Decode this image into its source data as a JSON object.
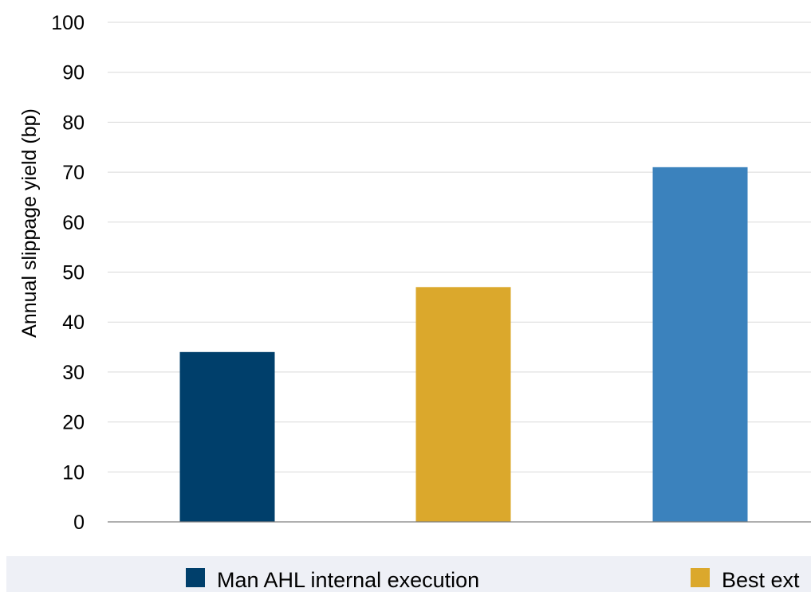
{
  "chart_data": {
    "type": "bar",
    "categories": [
      "",
      "",
      ""
    ],
    "values": [
      34,
      47,
      71
    ],
    "bar_colors": [
      "#003f6b",
      "#dba82c",
      "#3b82bd"
    ],
    "ylabel": "Annual slippage yield (bp)",
    "xlabel": "",
    "ylim": [
      0,
      100
    ],
    "yticks": [
      0,
      10,
      20,
      30,
      40,
      50,
      60,
      70,
      80,
      90,
      100
    ],
    "grid": true,
    "legend_position": "bottom",
    "legend_background": "#eef0f6",
    "legend": [
      {
        "label": "Man AHL internal execution",
        "color": "#003f6b"
      },
      {
        "label": "Best ext",
        "color": "#dba82c"
      }
    ]
  }
}
